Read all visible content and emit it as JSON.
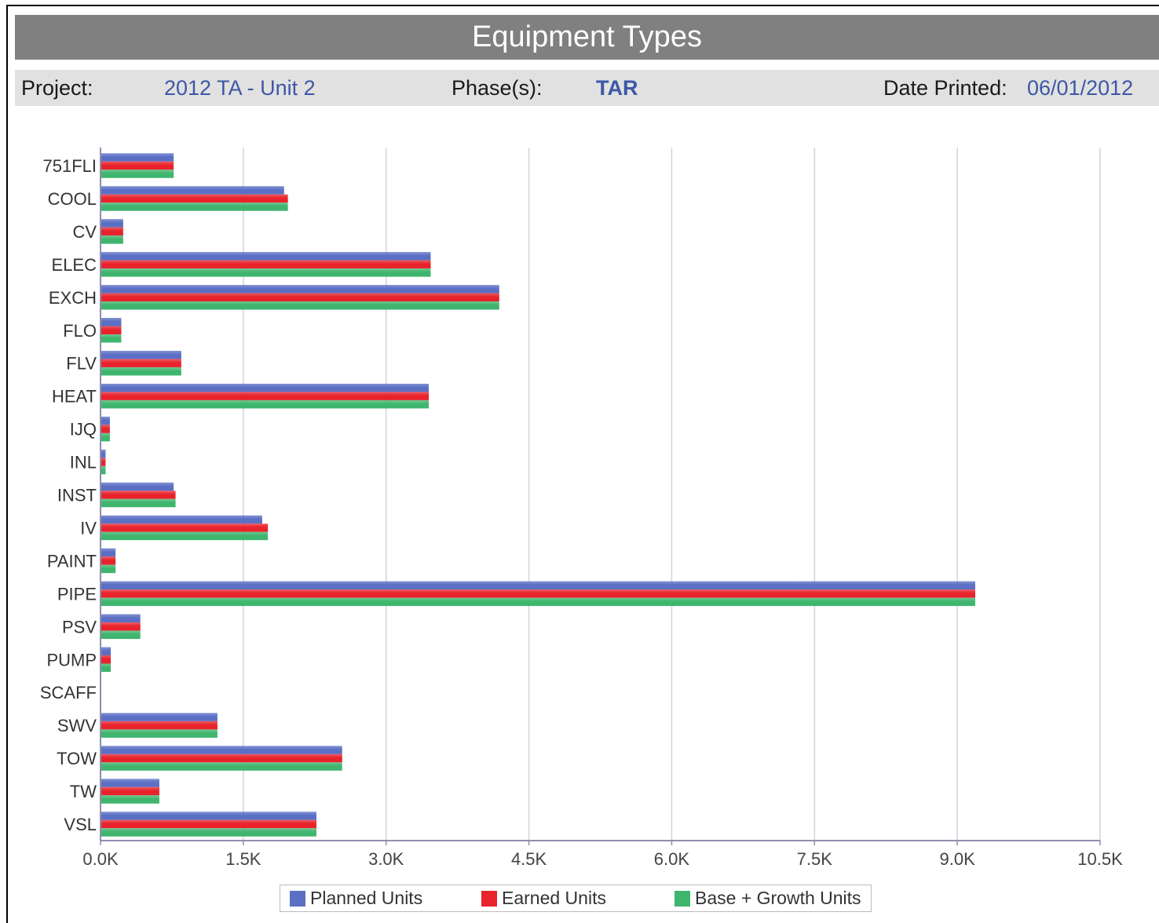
{
  "header": {
    "title": "Equipment Types",
    "project_label": "Project:",
    "project_value": "2012 TA - Unit 2",
    "phase_label": "Phase(s):",
    "phase_value": "TAR",
    "date_label": "Date Printed:",
    "date_value": "06/01/2012"
  },
  "colors": {
    "planned": "#5b6fc4",
    "earned": "#e8232b",
    "base_growth": "#3fb56e",
    "grid": "#d3d3e2",
    "axis": "#8e8eb0"
  },
  "chart_data": {
    "type": "bar",
    "orientation": "horizontal",
    "title": "",
    "xlabel": "",
    "ylabel": "",
    "xlim": [
      0,
      10500
    ],
    "x_ticks": [
      "0.0K",
      "1.5K",
      "3.0K",
      "4.5K",
      "6.0K",
      "7.5K",
      "9.0K",
      "10.5K"
    ],
    "x_tick_values": [
      0,
      1500,
      3000,
      4500,
      6000,
      7500,
      9000,
      10500
    ],
    "grid": "vertical",
    "legend_position": "bottom",
    "categories": [
      "751FLI",
      "COOL",
      "CV",
      "ELEC",
      "EXCH",
      "FLO",
      "FLV",
      "HEAT",
      "IJQ",
      "INL",
      "INST",
      "IV",
      "PAINT",
      "PIPE",
      "PSV",
      "PUMP",
      "SCAFF",
      "SWV",
      "TOW",
      "TW",
      "VSL"
    ],
    "series": [
      {
        "name": "Planned Units",
        "color_key": "planned",
        "values": [
          760,
          1920,
          230,
          3460,
          4180,
          210,
          840,
          3440,
          90,
          45,
          760,
          1690,
          150,
          9180,
          410,
          100,
          0,
          1220,
          2530,
          610,
          2260
        ]
      },
      {
        "name": "Earned Units",
        "color_key": "earned",
        "values": [
          760,
          1960,
          230,
          3460,
          4180,
          210,
          840,
          3440,
          90,
          45,
          780,
          1750,
          150,
          9180,
          410,
          100,
          0,
          1220,
          2530,
          610,
          2260
        ]
      },
      {
        "name": "Base + Growth Units",
        "color_key": "base_growth",
        "values": [
          760,
          1960,
          230,
          3460,
          4180,
          210,
          840,
          3440,
          90,
          45,
          780,
          1750,
          150,
          9180,
          410,
          100,
          0,
          1220,
          2530,
          610,
          2260
        ]
      }
    ]
  }
}
